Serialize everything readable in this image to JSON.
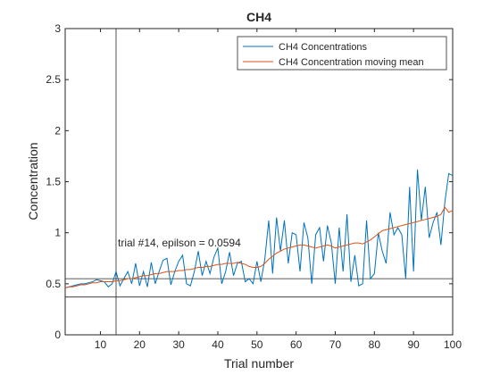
{
  "chart_data": {
    "type": "line",
    "title": "CH4",
    "xlabel": "Trial number",
    "ylabel": "Concentration",
    "xlim": [
      1,
      100
    ],
    "ylim": [
      0,
      3
    ],
    "xticks": [
      10,
      20,
      30,
      40,
      50,
      60,
      70,
      80,
      90,
      100
    ],
    "yticks": [
      0,
      0.5,
      1,
      1.5,
      2,
      2.5,
      3
    ],
    "xtick_labels": [
      "10",
      "20",
      "30",
      "40",
      "50",
      "60",
      "70",
      "80",
      "90",
      "100"
    ],
    "ytick_labels": [
      "0",
      "0.5",
      "1",
      "1.5",
      "2",
      "2.5",
      "3"
    ],
    "legend_position": "top-right",
    "grid": false,
    "series": [
      {
        "name": "CH4 Concentrations",
        "color": "#0072BD",
        "values": [
          0.46,
          0.47,
          0.48,
          0.49,
          0.5,
          0.5,
          0.51,
          0.52,
          0.54,
          0.53,
          0.52,
          0.47,
          0.5,
          0.62,
          0.48,
          0.55,
          0.62,
          0.5,
          0.7,
          0.48,
          0.62,
          0.47,
          0.71,
          0.5,
          0.62,
          0.73,
          0.75,
          0.49,
          0.62,
          0.72,
          0.78,
          0.5,
          0.48,
          0.62,
          0.82,
          0.58,
          0.72,
          0.6,
          0.76,
          0.85,
          0.5,
          0.62,
          0.81,
          0.58,
          0.7,
          0.72,
          0.52,
          0.55,
          0.5,
          0.72,
          0.52,
          0.74,
          1.12,
          0.6,
          1.15,
          0.82,
          1.12,
          0.7,
          1.0,
          0.98,
          0.62,
          1.1,
          0.95,
          0.5,
          0.98,
          1.05,
          0.72,
          1.07,
          0.9,
          0.5,
          1.05,
          0.62,
          1.18,
          0.52,
          0.78,
          0.48,
          0.5,
          1.12,
          0.55,
          0.6,
          1.0,
          0.82,
          0.7,
          1.2,
          0.98,
          1.05,
          0.98,
          0.55,
          1.45,
          0.62,
          1.62,
          1.12,
          1.45,
          0.95,
          1.1,
          1.2,
          0.88,
          1.3,
          1.58,
          1.56
        ]
      },
      {
        "name": "CH4 Concentration moving mean",
        "color": "#D95319",
        "values": [
          0.46,
          0.47,
          0.47,
          0.48,
          0.49,
          0.49,
          0.5,
          0.51,
          0.51,
          0.52,
          0.52,
          0.52,
          0.52,
          0.53,
          0.53,
          0.54,
          0.55,
          0.55,
          0.56,
          0.57,
          0.58,
          0.58,
          0.59,
          0.6,
          0.6,
          0.61,
          0.62,
          0.62,
          0.62,
          0.63,
          0.63,
          0.64,
          0.64,
          0.65,
          0.66,
          0.66,
          0.67,
          0.67,
          0.68,
          0.69,
          0.69,
          0.7,
          0.7,
          0.7,
          0.71,
          0.7,
          0.69,
          0.67,
          0.66,
          0.66,
          0.67,
          0.7,
          0.74,
          0.77,
          0.8,
          0.82,
          0.84,
          0.85,
          0.86,
          0.87,
          0.88,
          0.88,
          0.87,
          0.86,
          0.85,
          0.86,
          0.87,
          0.88,
          0.87,
          0.85,
          0.86,
          0.87,
          0.88,
          0.89,
          0.9,
          0.9,
          0.89,
          0.91,
          0.93,
          0.96,
          0.99,
          1.02,
          1.03,
          1.04,
          1.05,
          1.06,
          1.07,
          1.08,
          1.09,
          1.1,
          1.11,
          1.12,
          1.13,
          1.14,
          1.15,
          1.16,
          1.18,
          1.25,
          1.2,
          1.22
        ]
      }
    ],
    "reference_lines": {
      "vertical_x": 14,
      "horizontal_y": [
        0.55,
        0.37
      ]
    },
    "annotation": {
      "text": "trial #14, epilson = 0.0594",
      "x": 14,
      "y": 0.9
    }
  }
}
